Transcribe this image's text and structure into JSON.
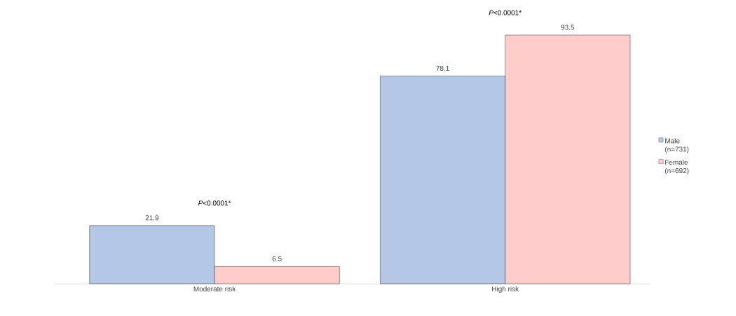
{
  "chart_data": {
    "type": "bar",
    "categories": [
      "Moderate risk",
      "High risk"
    ],
    "series": [
      {
        "name": "Male (n=731)",
        "color": "#b4c7e7",
        "values": [
          21.9,
          78.1
        ]
      },
      {
        "name": "Female (n=692)",
        "color": "#ffcccc",
        "values": [
          6.5,
          93.5
        ]
      }
    ],
    "data_labels": true,
    "legend": "right",
    "annotations": [
      "*P*<0.0001*",
      "*P*<0.0001*"
    ]
  }
}
